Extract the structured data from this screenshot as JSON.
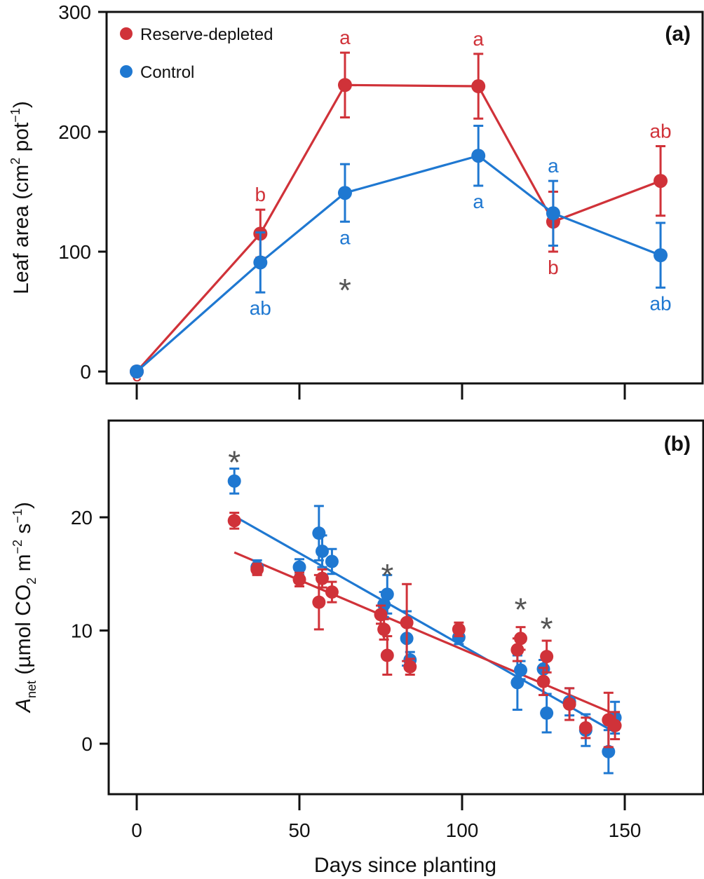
{
  "chart_data": [
    {
      "type": "line",
      "panel": "(a)",
      "ylabel_main": "Leaf area (cm",
      "ylabel_sup1": "2",
      "ylabel_mid": " pot",
      "ylabel_sup2": "−1",
      "ylabel_end": ")",
      "xlim": [
        0,
        160
      ],
      "ylim": [
        0,
        300
      ],
      "yticks": [
        0,
        100,
        200,
        300
      ],
      "xticks": [
        0,
        50,
        100,
        150
      ],
      "legend_position": "top-left",
      "legend": [
        {
          "name": "Reserve-depleted",
          "color": "#d03239"
        },
        {
          "name": "Control",
          "color": "#1f78d1"
        }
      ],
      "series": [
        {
          "name": "Reserve-depleted",
          "color": "#d03239",
          "points": [
            {
              "x": 0,
              "y": 0,
              "err": 0,
              "label": "c"
            },
            {
              "x": 38,
              "y": 115,
              "err": 20,
              "label": "b"
            },
            {
              "x": 64,
              "y": 239,
              "err": 27,
              "label": "a"
            },
            {
              "x": 105,
              "y": 238,
              "err": 27,
              "label": "a"
            },
            {
              "x": 128,
              "y": 125,
              "err": 25,
              "label": "b"
            },
            {
              "x": 161,
              "y": 159,
              "err": 29,
              "label": "ab"
            }
          ]
        },
        {
          "name": "Control",
          "color": "#1f78d1",
          "points": [
            {
              "x": 0,
              "y": 0,
              "err": 0,
              "label": ""
            },
            {
              "x": 38,
              "y": 91,
              "err": 25,
              "label": "ab"
            },
            {
              "x": 64,
              "y": 149,
              "err": 24,
              "label": "a"
            },
            {
              "x": 105,
              "y": 180,
              "err": 25,
              "label": "a"
            },
            {
              "x": 128,
              "y": 132,
              "err": 27,
              "label": "a"
            },
            {
              "x": 161,
              "y": 97,
              "err": 27,
              "label": "ab"
            }
          ]
        }
      ],
      "significance_markers": [
        {
          "x": 64,
          "y": 75,
          "label": "*"
        }
      ]
    },
    {
      "type": "scatter",
      "panel": "(b)",
      "ylabel_main": "A",
      "ylabel_sub1": "net",
      "ylabel_mid": " (µmol CO",
      "ylabel_sub2": "2",
      "ylabel_mid2": " m",
      "ylabel_sup1": "−2",
      "ylabel_mid3": " s",
      "ylabel_sup2": "−1",
      "ylabel_end": ")",
      "xlabel": "Days since planting",
      "xlim": [
        0,
        160
      ],
      "ylim": [
        -4,
        28
      ],
      "yticks": [
        0,
        10,
        20
      ],
      "xticks": [
        0,
        50,
        100,
        150
      ],
      "series": [
        {
          "name": "Reserve-depleted",
          "color": "#d03239",
          "points": [
            {
              "x": 30,
              "y": 19.7,
              "err": 0.7
            },
            {
              "x": 37,
              "y": 15.4,
              "err": 0.5
            },
            {
              "x": 50,
              "y": 14.5,
              "err": 0.6
            },
            {
              "x": 56,
              "y": 12.5,
              "err": 2.4
            },
            {
              "x": 57,
              "y": 14.6,
              "err": 0.8
            },
            {
              "x": 60,
              "y": 13.4,
              "err": 0.9
            },
            {
              "x": 75,
              "y": 11.4,
              "err": 0.8
            },
            {
              "x": 76,
              "y": 10.1,
              "err": 0.9
            },
            {
              "x": 77,
              "y": 7.8,
              "err": 1.7
            },
            {
              "x": 83,
              "y": 10.7,
              "err": 3.4
            },
            {
              "x": 84,
              "y": 6.8,
              "err": 0.7
            },
            {
              "x": 99,
              "y": 10.1,
              "err": 0.6
            },
            {
              "x": 117,
              "y": 8.3,
              "err": 1.0
            },
            {
              "x": 118,
              "y": 9.3,
              "err": 1.0
            },
            {
              "x": 125,
              "y": 5.5,
              "err": 1.2
            },
            {
              "x": 126,
              "y": 7.7,
              "err": 1.4
            },
            {
              "x": 133,
              "y": 3.5,
              "err": 1.4
            },
            {
              "x": 138,
              "y": 1.4,
              "err": 0.9
            },
            {
              "x": 145,
              "y": 2.1,
              "err": 2.4
            },
            {
              "x": 147,
              "y": 1.6,
              "err": 1.2
            }
          ],
          "fit": {
            "x": [
              30,
              147
            ],
            "y": [
              16.9,
              2.6
            ]
          }
        },
        {
          "name": "Control",
          "color": "#1f78d1",
          "points": [
            {
              "x": 30,
              "y": 23.2,
              "err": 1.1
            },
            {
              "x": 37,
              "y": 15.6,
              "err": 0.6
            },
            {
              "x": 50,
              "y": 15.6,
              "err": 0.7
            },
            {
              "x": 56,
              "y": 18.6,
              "err": 2.4
            },
            {
              "x": 57,
              "y": 17.0,
              "err": 1.4
            },
            {
              "x": 60,
              "y": 16.1,
              "err": 1.1
            },
            {
              "x": 76,
              "y": 12.3,
              "err": 1.1
            },
            {
              "x": 77,
              "y": 13.2,
              "err": 1.7
            },
            {
              "x": 83,
              "y": 9.3,
              "err": 2.4
            },
            {
              "x": 84,
              "y": 7.4,
              "err": 0.7
            },
            {
              "x": 99,
              "y": 9.4,
              "err": 0.6
            },
            {
              "x": 117,
              "y": 5.4,
              "err": 2.4
            },
            {
              "x": 118,
              "y": 6.5,
              "err": 0.8
            },
            {
              "x": 125,
              "y": 6.6,
              "err": 0.8
            },
            {
              "x": 126,
              "y": 2.7,
              "err": 1.7
            },
            {
              "x": 133,
              "y": 3.7,
              "err": 1.2
            },
            {
              "x": 138,
              "y": 1.2,
              "err": 1.4
            },
            {
              "x": 145,
              "y": -0.7,
              "err": 1.9
            },
            {
              "x": 147,
              "y": 2.3,
              "err": 1.4
            }
          ],
          "fit": {
            "x": [
              30,
              147
            ],
            "y": [
              20.1,
              1.0
            ]
          }
        }
      ],
      "significance_markers": [
        {
          "x": 30,
          "y": 25.6,
          "label": "*"
        },
        {
          "x": 77,
          "y": 15.6,
          "label": "*"
        },
        {
          "x": 118,
          "y": 12.6,
          "label": "*"
        },
        {
          "x": 126,
          "y": 10.9,
          "label": "*"
        }
      ]
    }
  ]
}
